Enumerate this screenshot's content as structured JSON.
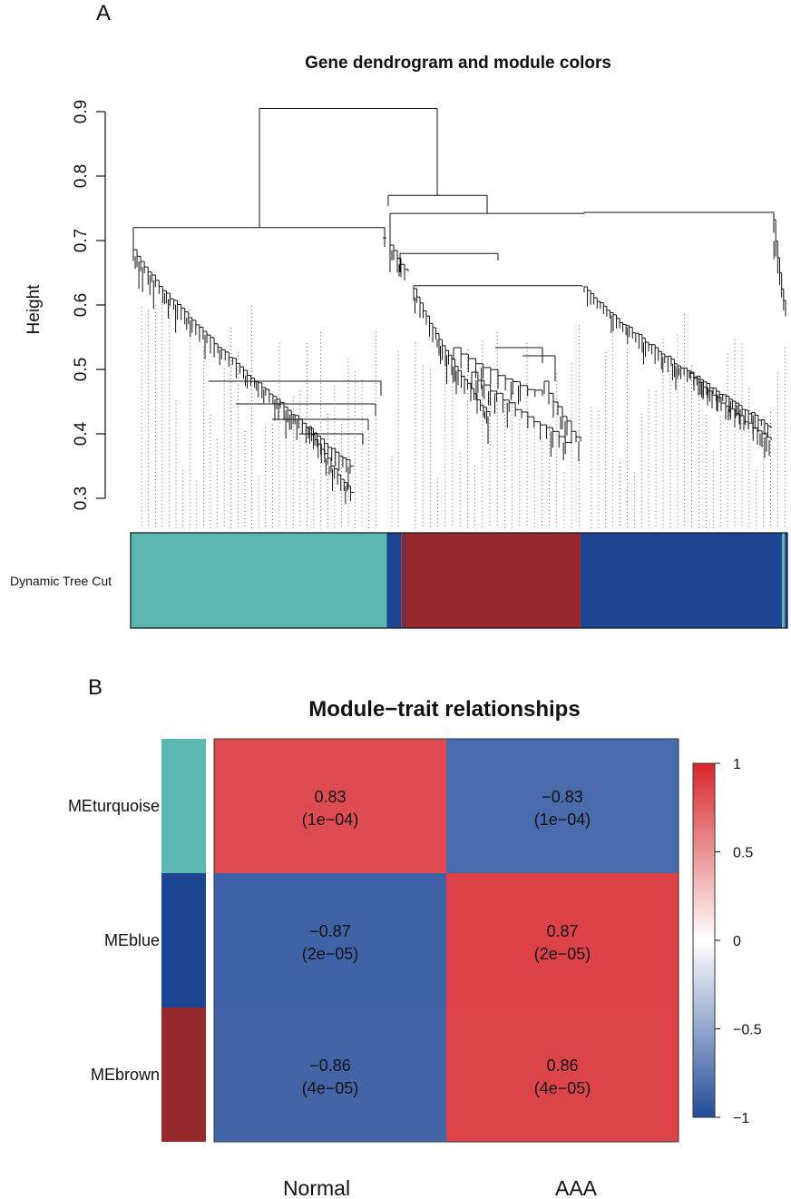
{
  "panel_a": {
    "label": "A",
    "title": "Gene dendrogram and module colors",
    "ylabel": "Height",
    "color_bar_label": "Dynamic Tree Cut"
  },
  "panel_b": {
    "label": "B",
    "title": "Module−trait relationships"
  },
  "colors": {
    "turquoise": "#5BB8B0",
    "blue": "#1E4594",
    "brown": "#962A2C",
    "pos": "#D7262C",
    "neg": "#244C9A",
    "mid": "#FFFFFF"
  },
  "chart_data": [
    {
      "type": "dendrogram",
      "title": "Gene dendrogram and module colors",
      "ylabel": "Height",
      "ylim": [
        0.3,
        0.9
      ],
      "yticks": [
        "0.3",
        "0.4",
        "0.5",
        "0.6",
        "0.7",
        "0.8",
        "0.9"
      ],
      "merges": [
        {
          "name": "root",
          "height": 0.905
        },
        {
          "name": "blue-brown-split",
          "height": 0.77
        },
        {
          "name": "blue-brown-inner",
          "height": 0.742
        },
        {
          "name": "turquoise-top",
          "height": 0.72
        },
        {
          "name": "brown-top",
          "height": 0.68
        },
        {
          "name": "brown-split",
          "height": 0.63
        }
      ],
      "color_rows": [
        {
          "label": "Dynamic Tree Cut",
          "segments": [
            {
              "module": "turquoise",
              "from": 0.0,
              "to": 0.39
            },
            {
              "module": "blue",
              "from": 0.39,
              "to": 0.412
            },
            {
              "module": "brown",
              "from": 0.412,
              "to": 0.685
            },
            {
              "module": "blue",
              "from": 0.685,
              "to": 0.992
            },
            {
              "module": "turquoise",
              "from": 0.992,
              "to": 0.996
            },
            {
              "module": "blue",
              "from": 0.996,
              "to": 1.0
            }
          ]
        }
      ]
    },
    {
      "type": "heatmap",
      "title": "Module−trait relationships",
      "rows": [
        "MEturquoise",
        "MEblue",
        "MEbrown"
      ],
      "row_colors": [
        "turquoise",
        "blue",
        "brown"
      ],
      "columns": [
        "Normal",
        "AAA"
      ],
      "values": [
        [
          0.83,
          -0.83
        ],
        [
          -0.87,
          0.87
        ],
        [
          -0.86,
          0.86
        ]
      ],
      "value_labels": [
        [
          "0.83",
          "−0.83"
        ],
        [
          "−0.87",
          "0.87"
        ],
        [
          "−0.86",
          "0.86"
        ]
      ],
      "pvalue_labels": [
        [
          "(1e−04)",
          "(1e−04)"
        ],
        [
          "(2e−05)",
          "(2e−05)"
        ],
        [
          "(4e−05)",
          "(4e−05)"
        ]
      ],
      "colorbar": {
        "range": [
          -1,
          1
        ],
        "ticks": [
          1,
          0.5,
          0,
          -0.5,
          -1
        ],
        "tick_labels": [
          "1",
          "0.5",
          "0",
          "−0.5",
          "−1"
        ]
      }
    }
  ]
}
